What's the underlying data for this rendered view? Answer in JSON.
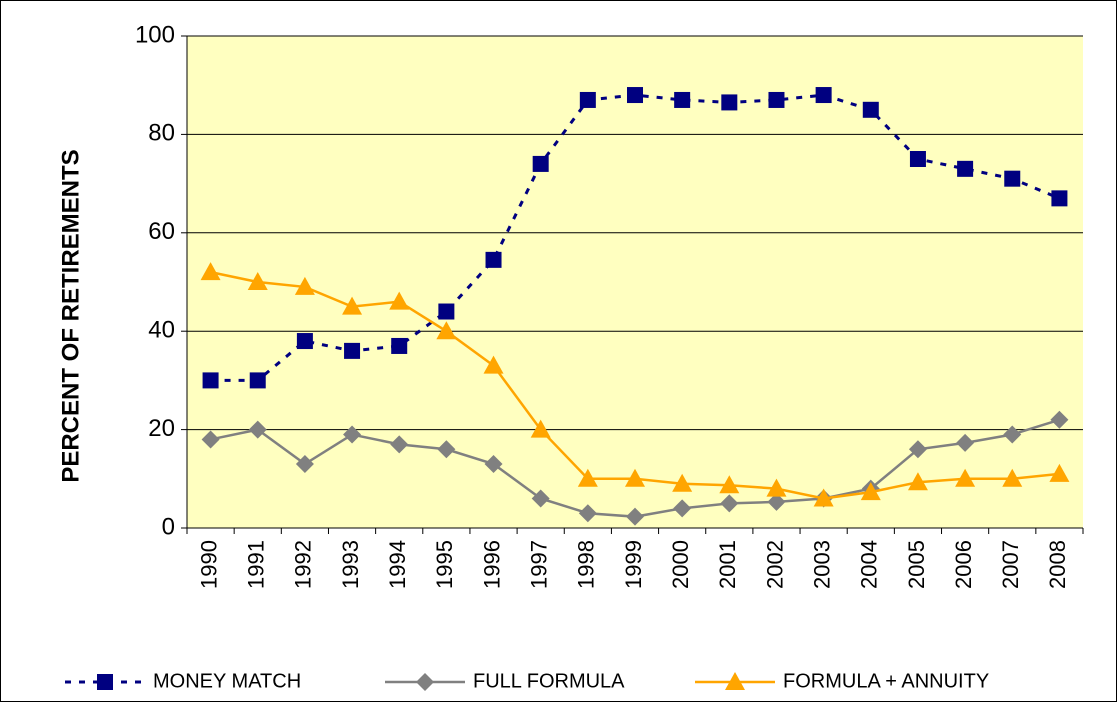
{
  "chart_data": {
    "type": "line",
    "y_label": "PERCENT OF RETIREMENTS",
    "categories": [
      "1990",
      "1991",
      "1992",
      "1993",
      "1994",
      "1995",
      "1996",
      "1997",
      "1998",
      "1999",
      "2000",
      "2001",
      "2002",
      "2003",
      "2004",
      "2005",
      "2006",
      "2007",
      "2008"
    ],
    "series": [
      {
        "name": "MONEY MATCH",
        "color": "#000080",
        "dash": true,
        "marker": "square",
        "values": [
          30,
          30,
          38,
          36,
          37,
          44,
          54.5,
          74,
          87,
          88,
          87,
          86.5,
          87,
          88,
          85,
          75,
          73,
          71,
          67
        ]
      },
      {
        "name": "FULL FORMULA",
        "color": "#808080",
        "dash": false,
        "marker": "diamond",
        "values": [
          18,
          20,
          13,
          19,
          17,
          16,
          13,
          6,
          3,
          2.3,
          4,
          5,
          5.3,
          6,
          8,
          16,
          17.3,
          19,
          22
        ]
      },
      {
        "name": "FORMULA + ANNUITY",
        "color": "#FFA500",
        "dash": false,
        "marker": "triangle",
        "values": [
          52,
          50,
          49,
          45,
          46,
          40,
          33,
          20,
          10,
          10,
          9,
          8.7,
          8,
          6,
          7.3,
          9.3,
          10,
          10,
          11
        ]
      }
    ],
    "ylim": [
      0,
      100
    ],
    "yticks": [
      0,
      20,
      40,
      60,
      80,
      100
    ],
    "grid": true,
    "plot_background": "#FFFFC0"
  }
}
